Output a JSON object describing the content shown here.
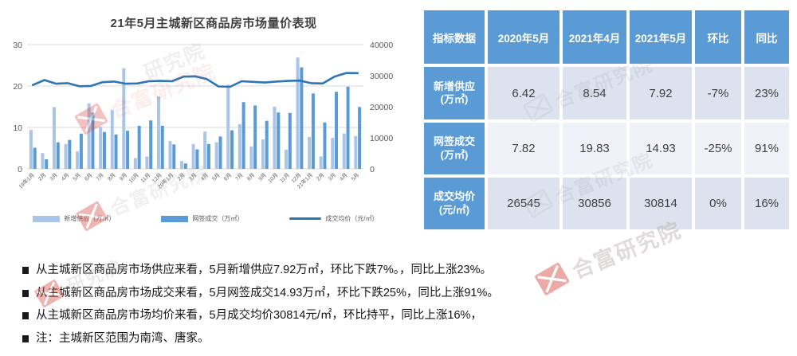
{
  "chart": {
    "title": "21年5月主城新区商品房市场量价表现",
    "legend": {
      "supply": "新增供应（万㎡）",
      "deals": "网签成交（万㎡）",
      "price": "成交均价（元/㎡）"
    }
  },
  "chart_data": {
    "type": "bar+line",
    "title": "21年5月主城新区商品房市场量价表现",
    "categories": [
      "19年1月",
      "2月",
      "3月",
      "4月",
      "5月",
      "6月",
      "7月",
      "8月",
      "9月",
      "10月",
      "11月",
      "12月",
      "20年1月",
      "2月",
      "3月",
      "4月",
      "5月",
      "6月",
      "7月",
      "8月",
      "9月",
      "10月",
      "11月",
      "12月",
      "21年1月",
      "2月",
      "3月",
      "4月",
      "5月"
    ],
    "series": [
      {
        "name": "新增供应（万㎡）",
        "type": "bar",
        "axis": "left",
        "values": [
          9.4,
          3.8,
          14.9,
          6.0,
          4.2,
          15.8,
          10.2,
          14.2,
          24.3,
          2.6,
          3.0,
          17.5,
          6.7,
          1.9,
          6.0,
          9.0,
          6.42,
          20.3,
          10.8,
          5.4,
          7.1,
          15.0,
          4.6,
          26.9,
          7.7,
          3.0,
          7.5,
          8.54,
          7.92
        ]
      },
      {
        "name": "网签成交（万㎡）",
        "type": "bar",
        "axis": "left",
        "values": [
          5.1,
          2.3,
          6.4,
          7.0,
          8.5,
          13.6,
          8.9,
          8.3,
          9.2,
          10.4,
          11.7,
          10.4,
          5.9,
          1.3,
          4.7,
          6.0,
          7.82,
          9.3,
          16.1,
          15.3,
          11.6,
          13.6,
          13.5,
          24.5,
          18.2,
          11.2,
          18.6,
          19.83,
          14.93
        ]
      },
      {
        "name": "成交均价（元/㎡）",
        "type": "line",
        "axis": "right",
        "values": [
          27000,
          28600,
          27400,
          27600,
          26600,
          26700,
          27900,
          28100,
          27400,
          27500,
          28200,
          28300,
          28200,
          29700,
          29800,
          28900,
          26545,
          26400,
          28200,
          28000,
          27800,
          28100,
          28300,
          28400,
          27600,
          27500,
          29700,
          30856,
          30814
        ]
      }
    ],
    "left_axis": {
      "ticks": [
        0,
        10,
        20,
        30
      ],
      "max": 30
    },
    "right_axis": {
      "ticks": [
        0,
        10000,
        20000,
        30000,
        40000
      ],
      "max": 40000
    },
    "grid": true,
    "legend_position": "bottom"
  },
  "colors": {
    "bar_light": "#A9C5E8",
    "bar_dark": "#5B9BD5",
    "line": "#2E75B6",
    "table_header": "#5B9BD5",
    "row_shade_a": "#DCE3EF",
    "row_shade_b": "#EFF3F9",
    "gridline": "#D9D9D9"
  },
  "table": {
    "headers": [
      "指标数据",
      "2020年5月",
      "2021年4月",
      "2021年5月",
      "环比",
      "同比"
    ],
    "rows": [
      {
        "label": "新增供应",
        "unit": "(万㎡)",
        "values": [
          "6.42",
          "8.54",
          "7.92",
          "-7%",
          "23%"
        ]
      },
      {
        "label": "网签成交",
        "unit": "(万㎡)",
        "values": [
          "7.82",
          "19.83",
          "14.93",
          "-25%",
          "91%"
        ]
      },
      {
        "label": "成交均价",
        "unit": "(元/㎡)",
        "values": [
          "26545",
          "30856",
          "30814",
          "0%",
          "16%"
        ]
      }
    ]
  },
  "notes": {
    "items": [
      "从主城新区商品房市场供应来看，5月新增供应7.92万㎡，环比下跌7%。，同比上涨23%。",
      "从主城新区商品房市场成交来看，5月网签成交14.93万㎡，环比下跌25%，同比上涨91%。",
      "从主城新区商品房市场均价来看，5月成交均价30814元/㎡，环比持平，同比上涨16%，",
      "注：主城新区范围为南湾、唐家。"
    ]
  },
  "watermark": {
    "full": "合富研究院",
    "short": "研究院",
    "brand": "合富"
  }
}
